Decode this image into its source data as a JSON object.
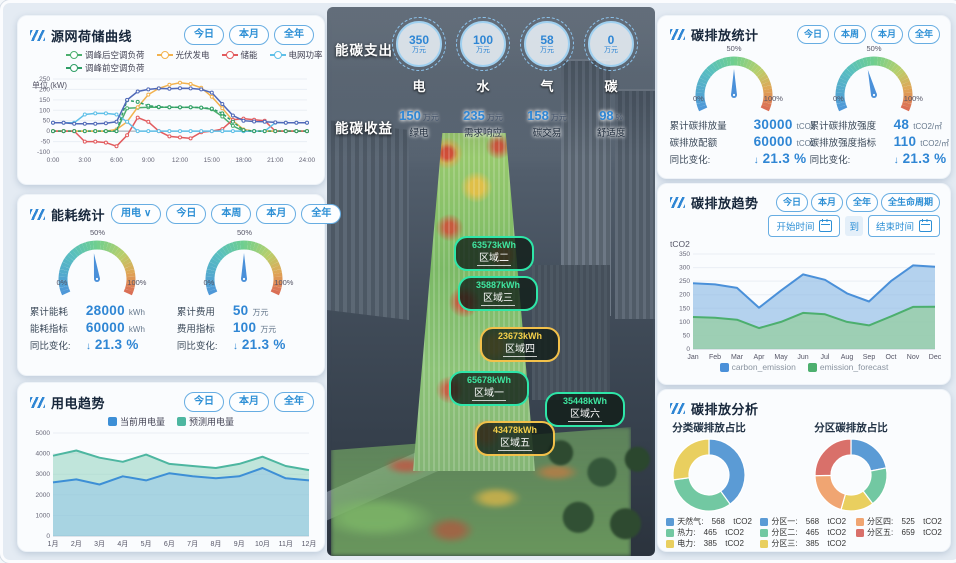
{
  "panels": {
    "source": {
      "title": "源网荷储曲线",
      "buttons": [
        "今日",
        "本月",
        "全年"
      ],
      "unit_label": "单位 (kW)",
      "chart_data": {
        "type": "line",
        "ymin": -100,
        "ymax": 250,
        "yticks": [
          250,
          200,
          150,
          100,
          50,
          0,
          -50,
          -100
        ],
        "x_tick_labels": [
          "0:00",
          "3:00",
          "6:00",
          "9:00",
          "12:00",
          "15:00",
          "18:00",
          "21:00",
          "24:00"
        ],
        "series": [
          {
            "name": "调峰后空调负荷",
            "color": "#4caf6e",
            "values": [
              0,
              0,
              0,
              0,
              0,
              0,
              0,
              110,
              112,
              115,
              115,
              115,
              114,
              115,
              112,
              105,
              70,
              25,
              0,
              0,
              0,
              0,
              0,
              0,
              0
            ]
          },
          {
            "name": "光伏发电",
            "color": "#f2b24e",
            "values": [
              0,
              0,
              0,
              0,
              0,
              0,
              8,
              45,
              115,
              175,
              205,
              222,
              232,
              226,
              208,
              165,
              110,
              50,
              8,
              0,
              0,
              0,
              0,
              0,
              0
            ]
          },
          {
            "name": "储能",
            "color": "#e25b5e",
            "values": [
              0,
              0,
              0,
              -50,
              -50,
              -55,
              -72,
              -20,
              65,
              45,
              0,
              -25,
              -30,
              -35,
              -5,
              0,
              10,
              55,
              60,
              55,
              50,
              0,
              0,
              0,
              0
            ]
          },
          {
            "name": "电网功率",
            "color": "#5fc0e8",
            "values": [
              40,
              40,
              40,
              80,
              85,
              85,
              80,
              45,
              0,
              0,
              0,
              0,
              0,
              0,
              0,
              0,
              0,
              0,
              0,
              0,
              0,
              40,
              40,
              40,
              40
            ]
          },
          {
            "name": "调峰前空调负荷",
            "color": "#2f9e66",
            "dash": true,
            "values": [
              0,
              0,
              0,
              0,
              0,
              0,
              0,
              148,
              140,
              122,
              116,
              115,
              115,
              115,
              113,
              108,
              85,
              45,
              5,
              0,
              0,
              0,
              0,
              0,
              0
            ]
          },
          {
            "name": "",
            "color": "#5069b8",
            "values": [
              40,
              40,
              35,
              35,
              35,
              38,
              45,
              150,
              190,
              200,
              205,
              203,
              206,
              205,
              200,
              185,
              130,
              75,
              50,
              46,
              45,
              42,
              40,
              40,
              40
            ]
          }
        ]
      }
    },
    "energy": {
      "title": "能耗统计",
      "selector": {
        "label": "用电"
      },
      "buttons": [
        "今日",
        "本周",
        "本月",
        "全年"
      ],
      "gauges": [
        {
          "pct": 47,
          "scale": [
            "0%",
            "50%",
            "100%"
          ],
          "rows": [
            {
              "label": "累计能耗",
              "value": "28000",
              "unit": "kWh"
            },
            {
              "label": "能耗指标",
              "value": "60000",
              "unit": "kWh"
            },
            {
              "label": "同比变化:",
              "arrow": "↓",
              "value": "21.3 %",
              "unit": ""
            }
          ]
        },
        {
          "pct": 50,
          "scale": [
            "0%",
            "50%",
            "100%"
          ],
          "rows": [
            {
              "label": "累计费用",
              "value": "50",
              "unit": "万元"
            },
            {
              "label": "费用指标",
              "value": "100",
              "unit": "万元"
            },
            {
              "label": "同比变化:",
              "arrow": "↓",
              "value": "21.3 %",
              "unit": ""
            }
          ]
        }
      ]
    },
    "usage": {
      "title": "用电趋势",
      "buttons": [
        "今日",
        "本月",
        "全年"
      ],
      "chart_data": {
        "type": "area",
        "ymin": 0,
        "ymax": 5000,
        "yticks": [
          5000,
          4000,
          3000,
          2000,
          1000,
          0
        ],
        "x_labels": [
          "1月",
          "2月",
          "3月",
          "4月",
          "5月",
          "6月",
          "7月",
          "8月",
          "9月",
          "10月",
          "11月",
          "12月"
        ],
        "series": [
          {
            "name": "预测用电量",
            "color": "#4db6a0",
            "fill": "rgba(143,209,190,0.55)",
            "values": [
              3900,
              4150,
              3800,
              3600,
              3950,
              3500,
              3400,
              3300,
              3500,
              3850,
              3400,
              3200
            ]
          },
          {
            "name": "当前用电量",
            "color": "#3d8fd6",
            "fill": "rgba(140,190,235,0.45)",
            "values": [
              2600,
              2750,
              2500,
              2900,
              2700,
              3050,
              2900,
              2800,
              2900,
              3300,
              2800,
              2700
            ]
          }
        ]
      }
    },
    "carbon_stats": {
      "title": "碳排放统计",
      "buttons": [
        "今日",
        "本周",
        "本月",
        "全年"
      ],
      "gauges": [
        {
          "pct": 50,
          "scale": [
            "0%",
            "50%",
            "100%"
          ],
          "rows": [
            {
              "label": "累计碳排放量",
              "value": "30000",
              "unit": "tCO2"
            },
            {
              "label": "碳排放配额",
              "value": "60000",
              "unit": "tCO2"
            },
            {
              "label": "同比变化:",
              "arrow": "↓",
              "value": "21.3 %",
              "unit": ""
            }
          ]
        },
        {
          "pct": 44,
          "scale": [
            "0%",
            "50%",
            "100%"
          ],
          "rows": [
            {
              "label": "累计碳排放强度",
              "value": "48",
              "unit": "tCO2/㎡"
            },
            {
              "label": "碳排放强度指标",
              "value": "110",
              "unit": "tCO2/㎡"
            },
            {
              "label": "同比变化:",
              "arrow": "↓",
              "value": "21.3 %",
              "unit": ""
            }
          ]
        }
      ]
    },
    "carbon_trend": {
      "title": "碳排放趋势",
      "buttons": [
        "今日",
        "本月",
        "全年",
        "全生命周期"
      ],
      "date_start": "开始时间",
      "date_to": "到",
      "date_end": "结束时间",
      "ylabel": "tCO2",
      "chart_data": {
        "type": "area",
        "ymin": 0,
        "ymax": 350,
        "yticks": [
          350,
          300,
          250,
          200,
          150,
          100,
          50,
          0
        ],
        "x_labels": [
          "Jan",
          "Feb",
          "Mar",
          "Apr",
          "May",
          "Jun",
          "Jul",
          "Aug",
          "Sep",
          "Oct",
          "Nov",
          "Dec"
        ],
        "series": [
          {
            "name": "carbon_emission",
            "color": "#4a90d9",
            "fill": "rgba(133,181,227,0.6)",
            "values": [
              242,
              238,
              225,
              152,
              215,
              275,
              255,
              205,
              175,
              250,
              308,
              303
            ]
          },
          {
            "name": "emission_forecast",
            "color": "#4caf6e",
            "fill": "rgba(150,205,160,0.75)",
            "values": [
              118,
              115,
              108,
              77,
              100,
              133,
              128,
              100,
              87,
              120,
              155,
              156
            ]
          }
        ]
      }
    },
    "analysis": {
      "title": "碳排放分析",
      "charts": [
        {
          "subtitle": "分类碳排放占比",
          "type": "pie",
          "slices": [
            {
              "label": "天然气",
              "value": 568,
              "unit": "tCO2",
              "color": "#5b9bd5"
            },
            {
              "label": "热力",
              "value": 465,
              "unit": "tCO2",
              "color": "#72c8a2"
            },
            {
              "label": "电力",
              "value": 385,
              "unit": "tCO2",
              "color": "#e9cf5f"
            }
          ]
        },
        {
          "subtitle": "分区碳排放占比",
          "type": "pie",
          "slices": [
            {
              "label": "分区一",
              "value": 568,
              "unit": "tCO2",
              "color": "#5b9bd5"
            },
            {
              "label": "分区二",
              "value": 465,
              "unit": "tCO2",
              "color": "#72c8a2"
            },
            {
              "label": "分区三",
              "value": 385,
              "unit": "tCO2",
              "color": "#e9cf5f"
            },
            {
              "label": "分区四",
              "value": 525,
              "unit": "tCO2",
              "color": "#f0a572"
            },
            {
              "label": "分区五",
              "value": 659,
              "unit": "tCO2",
              "color": "#d9706a"
            }
          ]
        }
      ]
    }
  },
  "center": {
    "expense_label": "能碳支出",
    "income_label": "能碳收益",
    "expense_items": [
      {
        "value": "350",
        "unit": "万元",
        "name": "电"
      },
      {
        "value": "100",
        "unit": "万元",
        "name": "水"
      },
      {
        "value": "58",
        "unit": "万元",
        "name": "气"
      },
      {
        "value": "0",
        "unit": "万元",
        "name": "碳"
      }
    ],
    "income_items": [
      {
        "value": "150",
        "unit": "万元",
        "name": "绿电"
      },
      {
        "value": "235",
        "unit": "万元",
        "name": "需求响应"
      },
      {
        "value": "158",
        "unit": "万元",
        "name": "碳交易"
      },
      {
        "value": "98",
        "unit": "%",
        "name": "舒适度"
      }
    ],
    "zones": [
      {
        "value": "63573kWh",
        "name": "区域二",
        "level": "green"
      },
      {
        "value": "35887kWh",
        "name": "区域三",
        "level": "green"
      },
      {
        "value": "23673kWh",
        "name": "区域四",
        "level": "yellow"
      },
      {
        "value": "65678kWh",
        "name": "区域一",
        "level": "green"
      },
      {
        "value": "35448kWh",
        "name": "区域六",
        "level": "green"
      },
      {
        "value": "43478kWh",
        "name": "区域五",
        "level": "yellow"
      }
    ]
  },
  "colors": {
    "accent_blue": "#2f86d4",
    "zone_green": "#2ee6a8",
    "zone_yellow": "#f2c14a"
  }
}
